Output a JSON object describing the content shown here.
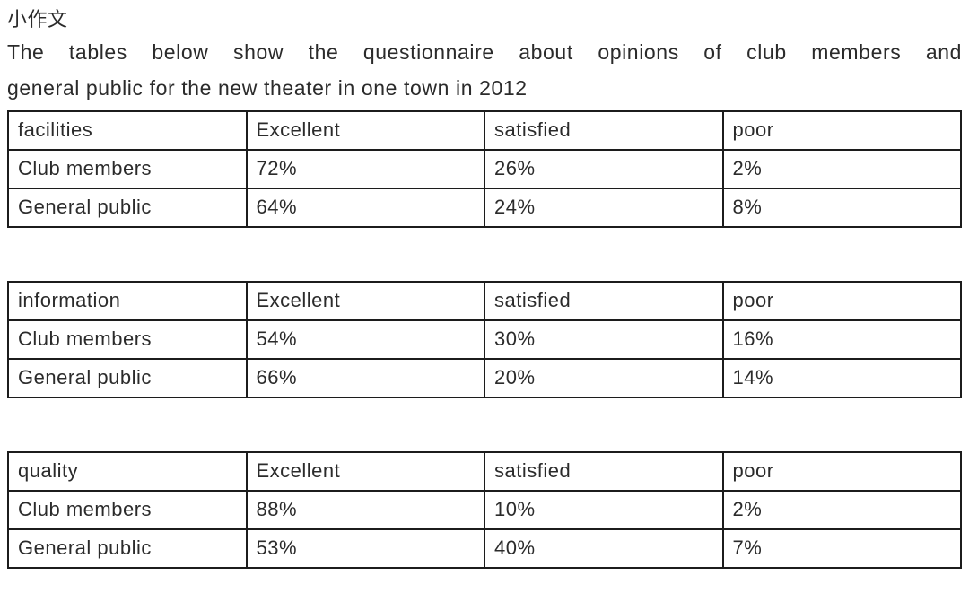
{
  "page": {
    "title": "小作文",
    "description_line1": "The tables below show the questionnaire about opinions of club members and",
    "description_line2": "general public for the new theater in one town in 2012"
  },
  "tables": [
    {
      "name": "facilities",
      "headers": [
        "facilities",
        "Excellent",
        "satisfied",
        "poor"
      ],
      "rows": [
        [
          "Club members",
          "72%",
          "26%",
          "2%"
        ],
        [
          "General public",
          "64%",
          "24%",
          "8%"
        ]
      ]
    },
    {
      "name": "information",
      "headers": [
        "information",
        "Excellent",
        "satisfied",
        "poor"
      ],
      "rows": [
        [
          "Club members",
          "54%",
          "30%",
          "16%"
        ],
        [
          "General public",
          "66%",
          "20%",
          "14%"
        ]
      ]
    },
    {
      "name": "quality",
      "headers": [
        "quality",
        "Excellent",
        "satisfied",
        "poor"
      ],
      "rows": [
        [
          "Club members",
          "88%",
          "10%",
          "2%"
        ],
        [
          "General public",
          "53%",
          "40%",
          "7%"
        ]
      ]
    }
  ],
  "colors": {
    "text": "#2b2b2b",
    "border": "#1c1c1c",
    "background": "#ffffff"
  }
}
